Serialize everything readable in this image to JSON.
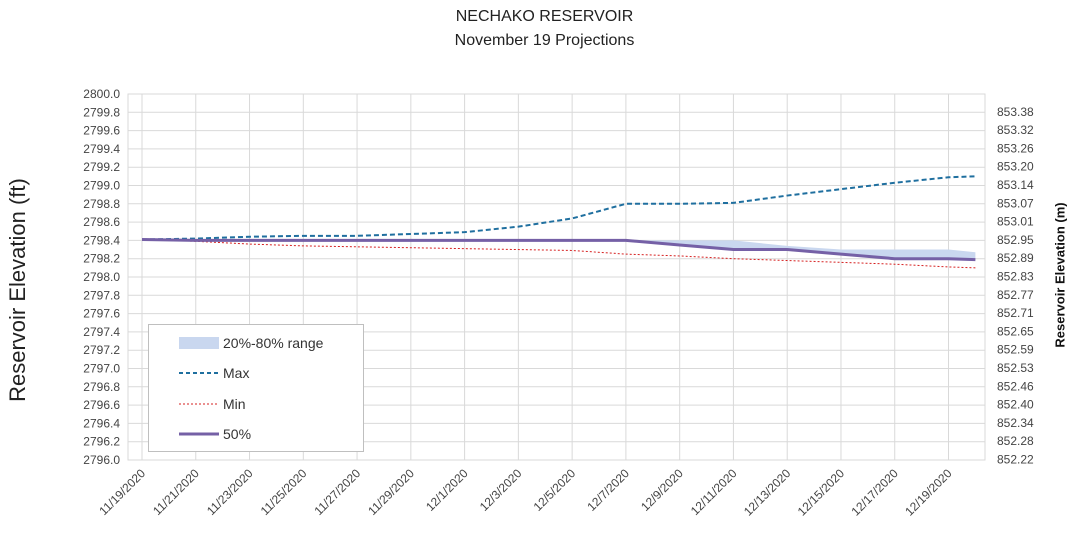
{
  "chart_data": {
    "type": "line",
    "title": "NECHAKO RESERVOIR",
    "subtitle": "November 19 Projections",
    "ylabel": "Reservoir Elevation (ft)",
    "ylabel_right": "Reservoir Elevation (m)",
    "ylim": [
      2796.0,
      2800.0
    ],
    "y_ticks": [
      "2796.0",
      "2796.2",
      "2796.4",
      "2796.6",
      "2796.8",
      "2797.0",
      "2797.2",
      "2797.4",
      "2797.6",
      "2797.8",
      "2798.0",
      "2798.2",
      "2798.4",
      "2798.6",
      "2798.8",
      "2799.0",
      "2799.2",
      "2799.4",
      "2799.6",
      "2799.8",
      "2800.0"
    ],
    "y2_ticks": [
      "852.22",
      "852.28",
      "852.34",
      "852.40",
      "852.46",
      "852.53",
      "852.59",
      "852.65",
      "852.71",
      "852.77",
      "852.83",
      "852.89",
      "852.95",
      "853.01",
      "853.07",
      "853.14",
      "853.20",
      "853.26",
      "853.32",
      "853.38"
    ],
    "x_ticks": [
      "11/19/2020",
      "11/21/2020",
      "11/23/2020",
      "11/25/2020",
      "11/27/2020",
      "11/29/2020",
      "12/1/2020",
      "12/3/2020",
      "12/5/2020",
      "12/7/2020",
      "12/9/2020",
      "12/11/2020",
      "12/13/2020",
      "12/15/2020",
      "12/17/2020",
      "12/19/2020"
    ],
    "x": [
      "11/19/2020",
      "11/21/2020",
      "11/23/2020",
      "11/25/2020",
      "11/27/2020",
      "11/29/2020",
      "12/1/2020",
      "12/3/2020",
      "12/5/2020",
      "12/7/2020",
      "12/9/2020",
      "12/11/2020",
      "12/13/2020",
      "12/15/2020",
      "12/17/2020",
      "12/19/2020",
      "12/20/2020"
    ],
    "grid": true,
    "legend_position": "bottom-left",
    "band": {
      "name": "20%-80% range",
      "color": "#c9d7ef",
      "low": [
        2798.41,
        2798.4,
        2798.4,
        2798.4,
        2798.4,
        2798.4,
        2798.4,
        2798.4,
        2798.4,
        2798.4,
        2798.35,
        2798.3,
        2798.3,
        2798.25,
        2798.2,
        2798.2,
        2798.18
      ],
      "high": [
        2798.41,
        2798.4,
        2798.4,
        2798.4,
        2798.4,
        2798.4,
        2798.4,
        2798.4,
        2798.4,
        2798.4,
        2798.4,
        2798.4,
        2798.34,
        2798.3,
        2798.3,
        2798.3,
        2798.27
      ]
    },
    "series": [
      {
        "name": "Max",
        "color": "#1f6f9f",
        "style": "dashed",
        "values": [
          2798.41,
          2798.42,
          2798.44,
          2798.45,
          2798.45,
          2798.47,
          2798.49,
          2798.55,
          2798.64,
          2798.8,
          2798.8,
          2798.81,
          2798.89,
          2798.96,
          2799.03,
          2799.09,
          2799.1
        ]
      },
      {
        "name": "Min",
        "color": "#d62020",
        "style": "dotted",
        "values": [
          2798.41,
          2798.39,
          2798.36,
          2798.34,
          2798.33,
          2798.32,
          2798.31,
          2798.3,
          2798.29,
          2798.25,
          2798.23,
          2798.2,
          2798.18,
          2798.16,
          2798.14,
          2798.11,
          2798.1
        ]
      },
      {
        "name": "50%",
        "color": "#7560a6",
        "style": "solid",
        "values": [
          2798.41,
          2798.4,
          2798.4,
          2798.4,
          2798.4,
          2798.4,
          2798.4,
          2798.4,
          2798.4,
          2798.4,
          2798.35,
          2798.3,
          2798.3,
          2798.25,
          2798.2,
          2798.2,
          2798.19
        ]
      }
    ]
  }
}
